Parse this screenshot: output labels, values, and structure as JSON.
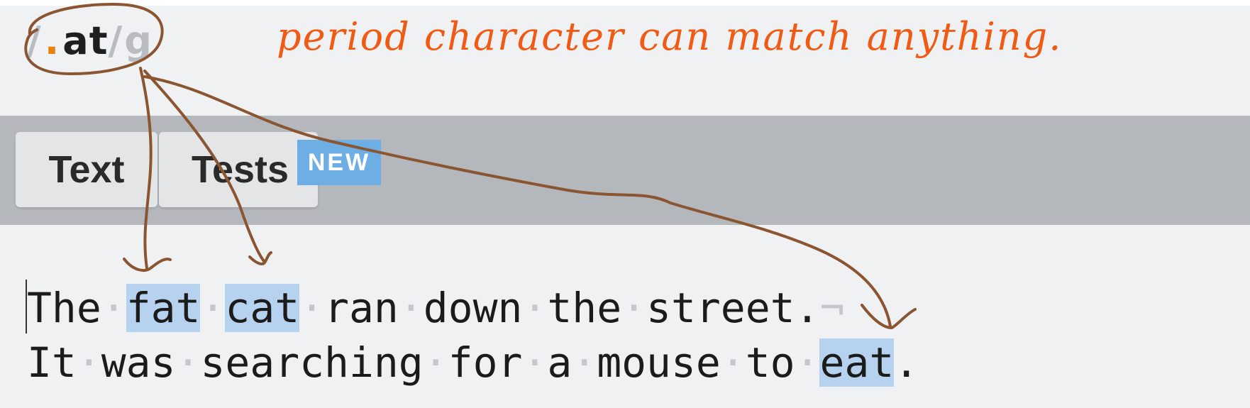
{
  "regex": {
    "open_delim": "/",
    "period": ".",
    "literal": "at",
    "close_delim": "/",
    "flags": "g"
  },
  "annotation": "period character can match anything.",
  "tabs": [
    {
      "label": "Text"
    },
    {
      "label": "Tests",
      "badge": "NEW"
    }
  ],
  "text_lines": [
    [
      {
        "t": "The",
        "hl": false
      },
      {
        "t": "·",
        "ws": true
      },
      {
        "t": "fat",
        "hl": true
      },
      {
        "t": "·",
        "ws": true
      },
      {
        "t": "cat",
        "hl": true
      },
      {
        "t": "·",
        "ws": true
      },
      {
        "t": "ran",
        "hl": false
      },
      {
        "t": "·",
        "ws": true
      },
      {
        "t": "down",
        "hl": false
      },
      {
        "t": "·",
        "ws": true
      },
      {
        "t": "the",
        "hl": false
      },
      {
        "t": "·",
        "ws": true
      },
      {
        "t": "street.",
        "hl": false
      },
      {
        "t": "¬",
        "ws": true
      }
    ],
    [
      {
        "t": "It",
        "hl": false
      },
      {
        "t": "·",
        "ws": true
      },
      {
        "t": "was",
        "hl": false
      },
      {
        "t": "·",
        "ws": true
      },
      {
        "t": "searching",
        "hl": false
      },
      {
        "t": "·",
        "ws": true
      },
      {
        "t": "for",
        "hl": false
      },
      {
        "t": "·",
        "ws": true
      },
      {
        "t": "a",
        "hl": false
      },
      {
        "t": "·",
        "ws": true
      },
      {
        "t": "mouse",
        "hl": false
      },
      {
        "t": "·",
        "ws": true
      },
      {
        "t": "to",
        "hl": false
      },
      {
        "t": "·",
        "ws": true
      },
      {
        "t": "eat",
        "hl": true
      },
      {
        "t": ".",
        "hl": false
      }
    ]
  ],
  "colors": {
    "period": "#e8820c",
    "annotation": "#f05a14",
    "highlight": "#b6d2ee",
    "badge": "#6daee4",
    "ink": "#8a5530"
  }
}
